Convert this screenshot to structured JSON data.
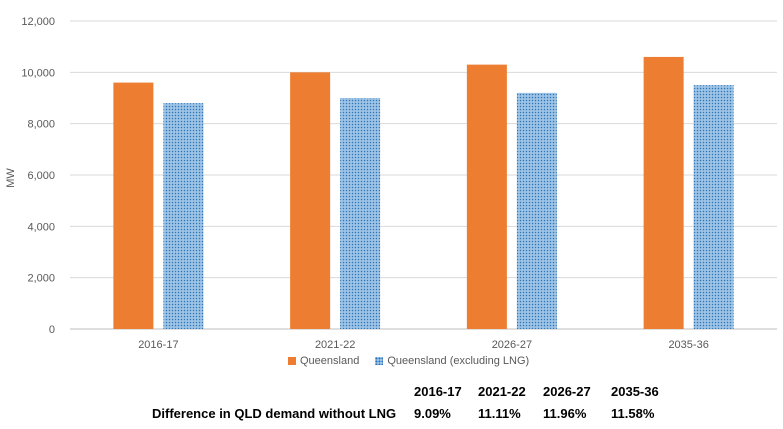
{
  "chart_data": {
    "type": "bar",
    "categories": [
      "2016-17",
      "2021-22",
      "2026-27",
      "2035-36"
    ],
    "series": [
      {
        "name": "Queensland",
        "values": [
          9600,
          10000,
          10300,
          10600
        ],
        "color": "#ED7D31"
      },
      {
        "name": "Queensland (excluding LNG)",
        "values": [
          8800,
          9000,
          9200,
          9500
        ],
        "color": "#9DC3E6",
        "pattern": "dotted"
      }
    ],
    "title": "",
    "xlabel": "",
    "ylabel": "MW",
    "ylim": [
      0,
      12000
    ],
    "yticks": [
      0,
      2000,
      4000,
      6000,
      8000,
      10000,
      12000
    ],
    "ytick_labels": [
      "0",
      "2,000",
      "4,000",
      "6,000",
      "8,000",
      "10,000",
      "12,000"
    ],
    "grid": true,
    "legend_position": "bottom"
  },
  "table": {
    "headers": [
      "2016-17",
      "2021-22",
      "2026-27",
      "2035-36"
    ],
    "row_label": "Difference in QLD demand without LNG",
    "values": [
      "9.09%",
      "11.11%",
      "11.96%",
      "11.58%"
    ]
  }
}
